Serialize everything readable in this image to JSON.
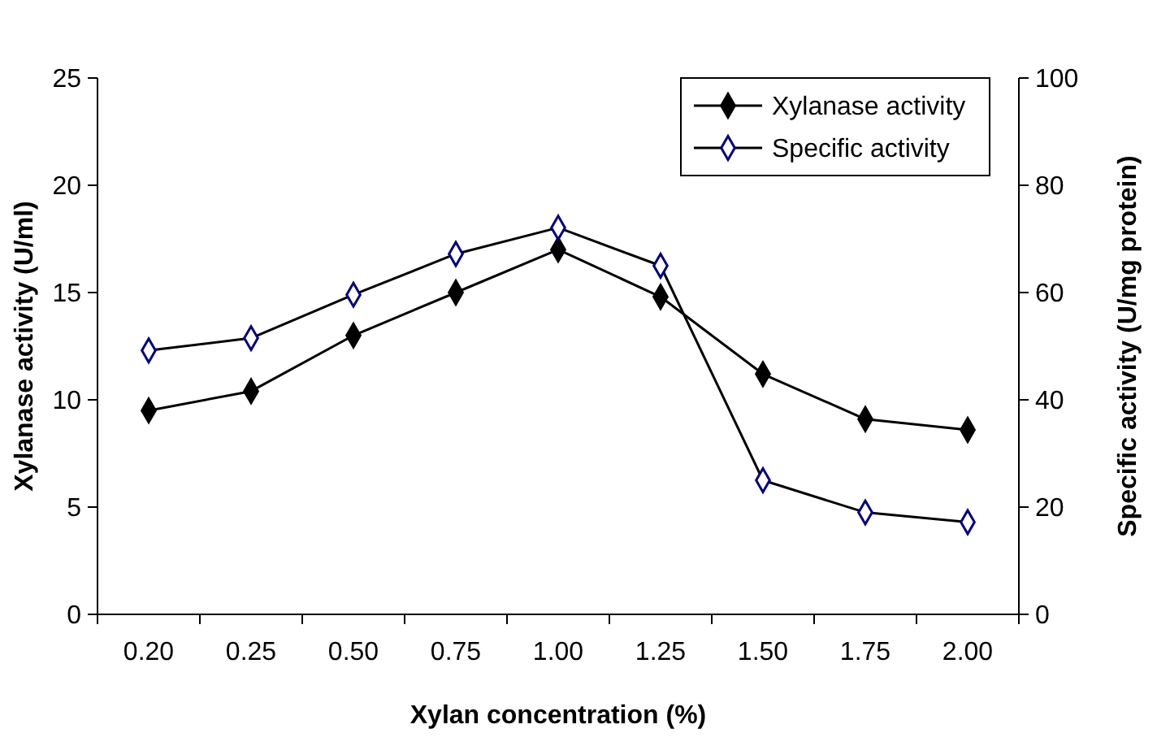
{
  "chart_data": {
    "type": "line",
    "xlabel": "Xylan concentration (%)",
    "ylabel": "Xylanase activity (U/ml)",
    "y2label": "Specific activity (U/mg protein)",
    "categories": [
      "0.20",
      "0.25",
      "0.50",
      "0.75",
      "1.00",
      "1.25",
      "1.50",
      "1.75",
      "2.00"
    ],
    "series": [
      {
        "name": "Xylanase activity",
        "color": "#000000",
        "values": [
          9.5,
          10.4,
          13.0,
          15.0,
          17.0,
          14.8,
          11.2,
          9.1,
          8.6
        ]
      },
      {
        "name": "Specific activity",
        "color": "#000080",
        "axis": "y2",
        "values": [
          49.2,
          51.5,
          59.6,
          67.2,
          72.1,
          65.0,
          25.0,
          19.0,
          17.2
        ]
      }
    ],
    "ylim": [
      0,
      25
    ],
    "yticks": [
      0,
      5,
      10,
      15,
      20,
      25
    ],
    "y2lim": [
      0,
      100
    ],
    "y2ticks": [
      0,
      20,
      40,
      60,
      80,
      100
    ],
    "marker": "diamond",
    "legend": "top right",
    "grid": false
  }
}
